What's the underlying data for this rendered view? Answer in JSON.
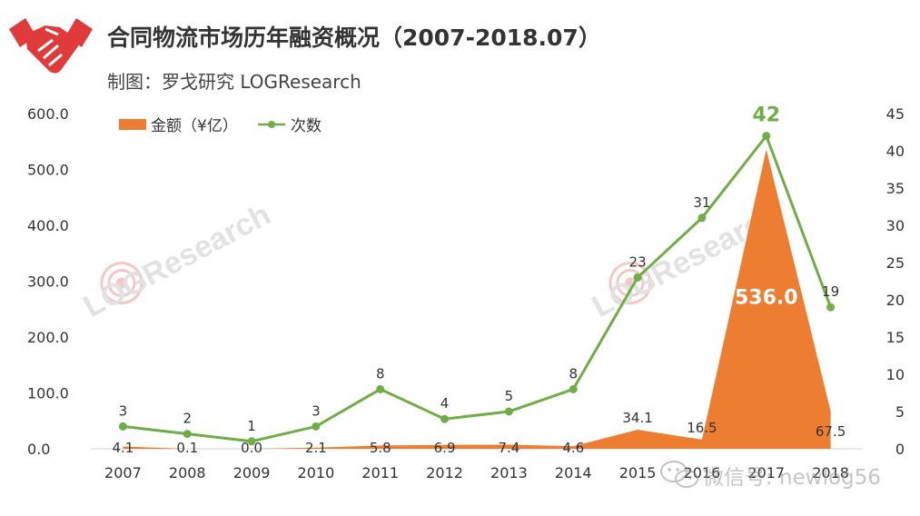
{
  "header": {
    "title": "合同物流市场历年融资概况（2007-2018.07）",
    "subtitle": "制图：罗戈研究 LOGResearch",
    "logo_icon": "handshake-icon"
  },
  "watermark": {
    "wechat_text": "微信号: newlog56",
    "logo_text": "LOGResearch"
  },
  "colors": {
    "amount": "#ED7D31",
    "count": "#70AD47",
    "logo_red": "#E03A3A"
  },
  "chart_data": {
    "type": "area",
    "categories": [
      "2007",
      "2008",
      "2009",
      "2010",
      "2011",
      "2012",
      "2013",
      "2014",
      "2015",
      "2016",
      "2017",
      "2018"
    ],
    "series": [
      {
        "name": "金额（¥亿）",
        "type": "area",
        "axis": "left",
        "values": [
          4.1,
          0.1,
          0.0,
          2.1,
          5.8,
          6.9,
          7.4,
          4.6,
          34.1,
          16.5,
          536.0,
          67.5
        ],
        "labels": [
          "4.1",
          "0.1",
          "0.0",
          "2.1",
          "5.8",
          "6.9",
          "7.4",
          "4.6",
          "34.1",
          "16.5",
          "536.0",
          "67.5"
        ]
      },
      {
        "name": "次数",
        "type": "line",
        "axis": "right",
        "values": [
          3,
          2,
          1,
          3,
          8,
          4,
          5,
          8,
          23,
          31,
          42,
          19
        ],
        "labels": [
          "3",
          "2",
          "1",
          "3",
          "8",
          "4",
          "5",
          "8",
          "23",
          "31",
          "42",
          "19"
        ]
      }
    ],
    "y_left": {
      "min": 0,
      "max": 600,
      "ticks": [
        "0.0",
        "100.0",
        "200.0",
        "300.0",
        "400.0",
        "500.0",
        "600.0"
      ]
    },
    "y_right": {
      "min": 0,
      "max": 45,
      "ticks": [
        "0",
        "5",
        "10",
        "15",
        "20",
        "25",
        "30",
        "35",
        "40",
        "45"
      ]
    },
    "legend": "top-left",
    "grid": false
  }
}
